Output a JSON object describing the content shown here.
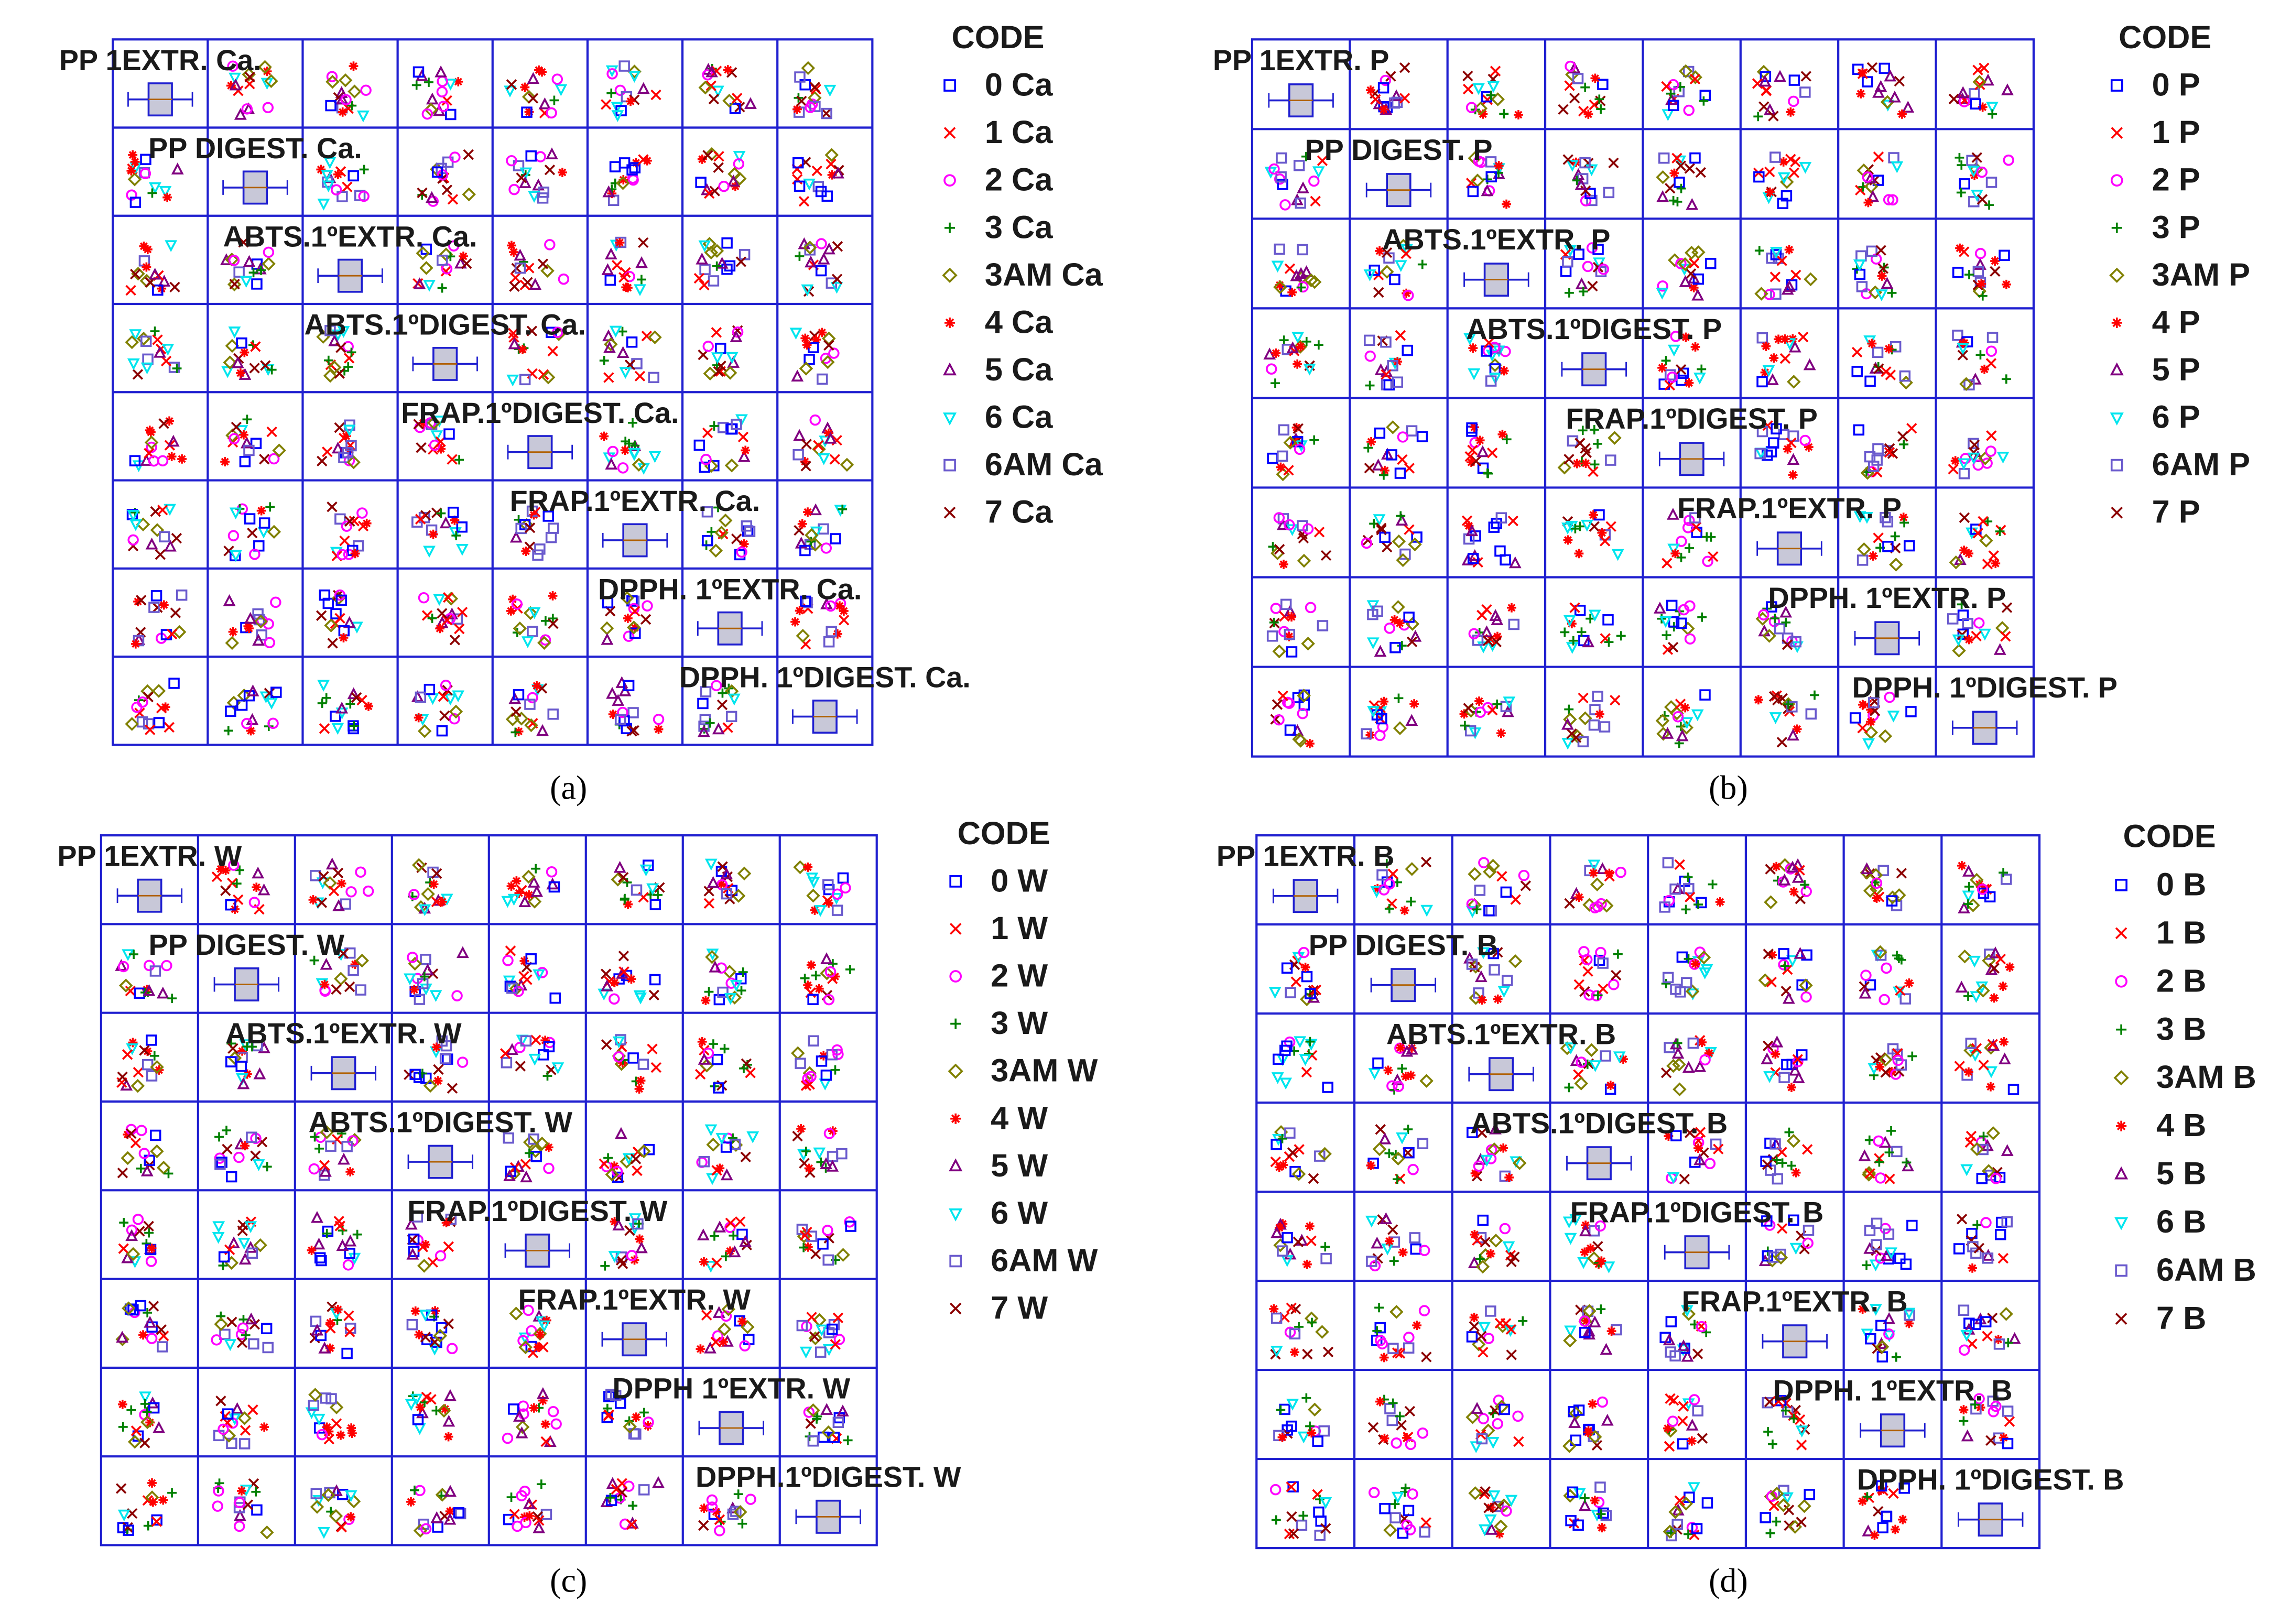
{
  "chart_data": [
    {
      "type": "scatter_matrix",
      "caption": "(a)",
      "legend_title": "CODE",
      "variables": [
        "PP 1EXTR. Ca.",
        "PP DIGEST. Ca.",
        "ABTS.1ºEXTR. Ca.",
        "ABTS.1ºDIGEST. Ca.",
        "FRAP.1ºDIGEST. Ca.",
        "FRAP.1ºEXTR. Ca.",
        "DPPH. 1ºEXTR. Ca.",
        "DPPH. 1ºDIGEST.  Ca."
      ],
      "series": [
        {
          "name": "0 Ca",
          "color": "#0000ff",
          "marker": "square"
        },
        {
          "name": "1 Ca",
          "color": "#ff0000",
          "marker": "x"
        },
        {
          "name": "2 Ca",
          "color": "#ff00ff",
          "marker": "circle"
        },
        {
          "name": "3 Ca",
          "color": "#008000",
          "marker": "plus"
        },
        {
          "name": "3AM Ca",
          "color": "#808000",
          "marker": "diamond"
        },
        {
          "name": "4 Ca",
          "color": "#ff0000",
          "marker": "asterisk"
        },
        {
          "name": "5 Ca",
          "color": "#800080",
          "marker": "triangle"
        },
        {
          "name": "6 Ca",
          "color": "#00e5ee",
          "marker": "triangle-down"
        },
        {
          "name": "6AM Ca",
          "color": "#6a5acd",
          "marker": "square"
        },
        {
          "name": "7 Ca",
          "color": "#8b0000",
          "marker": "x"
        }
      ]
    },
    {
      "type": "scatter_matrix",
      "caption": "(b)",
      "legend_title": "CODE",
      "variables": [
        "PP 1EXTR. P",
        "PP DIGEST. P",
        "ABTS.1ºEXTR. P",
        "ABTS.1ºDIGEST. P",
        "FRAP.1ºDIGEST. P",
        "FRAP.1ºEXTR. P",
        "DPPH. 1ºEXTR. P",
        "DPPH. 1ºDIGEST. P"
      ],
      "series": [
        {
          "name": "0 P",
          "color": "#0000ff",
          "marker": "square"
        },
        {
          "name": "1 P",
          "color": "#ff0000",
          "marker": "x"
        },
        {
          "name": "2 P",
          "color": "#ff00ff",
          "marker": "circle"
        },
        {
          "name": "3 P",
          "color": "#008000",
          "marker": "plus"
        },
        {
          "name": "3AM P",
          "color": "#808000",
          "marker": "diamond"
        },
        {
          "name": "4 P",
          "color": "#ff0000",
          "marker": "asterisk"
        },
        {
          "name": "5 P",
          "color": "#800080",
          "marker": "triangle"
        },
        {
          "name": "6 P",
          "color": "#00e5ee",
          "marker": "triangle-down"
        },
        {
          "name": "6AM P",
          "color": "#6a5acd",
          "marker": "square"
        },
        {
          "name": "7 P",
          "color": "#8b0000",
          "marker": "x"
        }
      ]
    },
    {
      "type": "scatter_matrix",
      "caption": "(c)",
      "legend_title": "CODE",
      "variables": [
        "PP 1EXTR. W",
        "PP DIGEST. W",
        "ABTS.1ºEXTR. W",
        "ABTS.1ºDIGEST. W",
        "FRAP.1ºDIGEST.  W",
        "FRAP.1ºEXTR. W",
        "DPPH 1ºEXTR. W",
        "DPPH.1ºDIGEST.  W"
      ],
      "series": [
        {
          "name": "0 W",
          "color": "#0000ff",
          "marker": "square"
        },
        {
          "name": "1 W",
          "color": "#ff0000",
          "marker": "x"
        },
        {
          "name": "2 W",
          "color": "#ff00ff",
          "marker": "circle"
        },
        {
          "name": "3 W",
          "color": "#008000",
          "marker": "plus"
        },
        {
          "name": "3AM W",
          "color": "#808000",
          "marker": "diamond"
        },
        {
          "name": "4 W",
          "color": "#ff0000",
          "marker": "asterisk"
        },
        {
          "name": "5 W",
          "color": "#800080",
          "marker": "triangle"
        },
        {
          "name": "6 W",
          "color": "#00e5ee",
          "marker": "triangle-down"
        },
        {
          "name": "6AM W",
          "color": "#6a5acd",
          "marker": "square"
        },
        {
          "name": "7 W",
          "color": "#8b0000",
          "marker": "x"
        }
      ]
    },
    {
      "type": "scatter_matrix",
      "caption": "(d)",
      "legend_title": "CODE",
      "variables": [
        "PP 1EXTR. B",
        "PP DIGEST. B",
        "ABTS.1ºEXTR. B",
        "ABTS.1ºDIGEST. B",
        "FRAP.1ºDIGEST. B",
        "FRAP.1ºEXTR. B",
        "DPPH. 1ºEXTR. B",
        "DPPH. 1ºDIGEST. B"
      ],
      "series": [
        {
          "name": "0 B",
          "color": "#0000ff",
          "marker": "square"
        },
        {
          "name": "1 B",
          "color": "#ff0000",
          "marker": "x"
        },
        {
          "name": "2 B",
          "color": "#ff00ff",
          "marker": "circle"
        },
        {
          "name": "3 B",
          "color": "#008000",
          "marker": "plus"
        },
        {
          "name": "3AM B",
          "color": "#808000",
          "marker": "diamond"
        },
        {
          "name": "4 B",
          "color": "#ff0000",
          "marker": "asterisk"
        },
        {
          "name": "5 B",
          "color": "#800080",
          "marker": "triangle"
        },
        {
          "name": "6 B",
          "color": "#00e5ee",
          "marker": "triangle-down"
        },
        {
          "name": "6AM B",
          "color": "#6a5acd",
          "marker": "square"
        },
        {
          "name": "7 B",
          "color": "#8b0000",
          "marker": "x"
        }
      ]
    }
  ]
}
